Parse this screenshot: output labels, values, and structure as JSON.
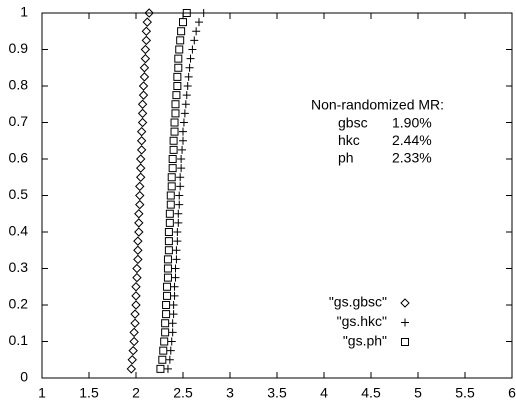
{
  "chart_data": {
    "type": "scatter",
    "annotation": {
      "title": "Non-randomized MR:",
      "rows": [
        [
          "gbsc",
          "1.90%"
        ],
        [
          "hkc",
          "2.44%"
        ],
        [
          "ph",
          "2.33%"
        ]
      ]
    },
    "series": [
      {
        "name": "\"gs.gbsc\"",
        "marker": "diamond",
        "color": "#000000",
        "x": [
          1.95,
          1.96,
          1.97,
          1.98,
          1.98,
          1.99,
          1.99,
          2.0,
          2.0,
          2.0,
          2.01,
          2.01,
          2.02,
          2.02,
          2.02,
          2.03,
          2.03,
          2.03,
          2.04,
          2.04,
          2.04,
          2.05,
          2.05,
          2.05,
          2.06,
          2.06,
          2.06,
          2.07,
          2.07,
          2.07,
          2.08,
          2.08,
          2.09,
          2.09,
          2.1,
          2.1,
          2.11,
          2.11,
          2.12,
          2.14
        ],
        "values": [
          0.025,
          0.05,
          0.075,
          0.1,
          0.125,
          0.15,
          0.175,
          0.2,
          0.225,
          0.25,
          0.275,
          0.3,
          0.325,
          0.35,
          0.375,
          0.4,
          0.425,
          0.45,
          0.475,
          0.5,
          0.525,
          0.55,
          0.575,
          0.6,
          0.625,
          0.65,
          0.675,
          0.7,
          0.725,
          0.75,
          0.775,
          0.8,
          0.825,
          0.85,
          0.875,
          0.9,
          0.925,
          0.95,
          0.975,
          1
        ]
      },
      {
        "name": "\"gs.hkc\"",
        "marker": "plus",
        "color": "#000000",
        "x": [
          2.34,
          2.36,
          2.37,
          2.38,
          2.39,
          2.39,
          2.4,
          2.4,
          2.41,
          2.41,
          2.42,
          2.42,
          2.43,
          2.43,
          2.44,
          2.44,
          2.45,
          2.45,
          2.46,
          2.46,
          2.47,
          2.47,
          2.48,
          2.48,
          2.49,
          2.5,
          2.5,
          2.51,
          2.52,
          2.53,
          2.54,
          2.55,
          2.56,
          2.57,
          2.58,
          2.6,
          2.62,
          2.64,
          2.67,
          2.72
        ],
        "values": [
          0.025,
          0.05,
          0.075,
          0.1,
          0.125,
          0.15,
          0.175,
          0.2,
          0.225,
          0.25,
          0.275,
          0.3,
          0.325,
          0.35,
          0.375,
          0.4,
          0.425,
          0.45,
          0.475,
          0.5,
          0.525,
          0.55,
          0.575,
          0.6,
          0.625,
          0.65,
          0.675,
          0.7,
          0.725,
          0.75,
          0.775,
          0.8,
          0.825,
          0.85,
          0.875,
          0.9,
          0.925,
          0.95,
          0.975,
          1
        ]
      },
      {
        "name": "\"gs.ph\"",
        "marker": "square",
        "color": "#000000",
        "x": [
          2.26,
          2.28,
          2.29,
          2.3,
          2.31,
          2.31,
          2.32,
          2.32,
          2.33,
          2.33,
          2.34,
          2.34,
          2.34,
          2.35,
          2.35,
          2.35,
          2.36,
          2.36,
          2.37,
          2.37,
          2.38,
          2.38,
          2.39,
          2.39,
          2.4,
          2.4,
          2.41,
          2.41,
          2.42,
          2.42,
          2.43,
          2.44,
          2.44,
          2.45,
          2.45,
          2.46,
          2.47,
          2.48,
          2.5,
          2.54
        ],
        "values": [
          0.025,
          0.05,
          0.075,
          0.1,
          0.125,
          0.15,
          0.175,
          0.2,
          0.225,
          0.25,
          0.275,
          0.3,
          0.325,
          0.35,
          0.375,
          0.4,
          0.425,
          0.45,
          0.475,
          0.5,
          0.525,
          0.55,
          0.575,
          0.6,
          0.625,
          0.65,
          0.675,
          0.7,
          0.725,
          0.75,
          0.775,
          0.8,
          0.825,
          0.85,
          0.875,
          0.9,
          0.925,
          0.95,
          0.975,
          1
        ]
      }
    ],
    "xlim": [
      1,
      6
    ],
    "xticks": [
      1,
      1.5,
      2,
      2.5,
      3,
      3.5,
      4,
      4.5,
      5,
      5.5,
      6
    ],
    "ylim": [
      0,
      1
    ],
    "yticks": [
      0,
      0.1,
      0.2,
      0.3,
      0.4,
      0.5,
      0.6,
      0.7,
      0.8,
      0.9,
      1
    ],
    "grid": false,
    "legend": "lower-right"
  }
}
